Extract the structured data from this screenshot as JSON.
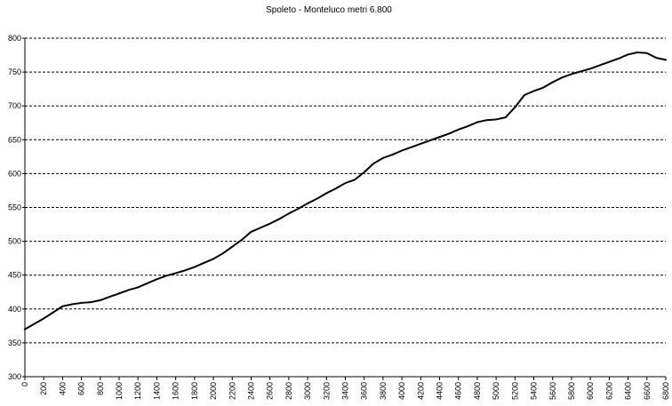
{
  "chart_data": {
    "type": "line",
    "title": "Spoleto - Monteluco metri 6.800",
    "xlabel": "",
    "ylabel": "",
    "ylim": [
      300,
      800
    ],
    "yticks": [
      300,
      350,
      400,
      450,
      500,
      550,
      600,
      650,
      700,
      750,
      800
    ],
    "xlim": [
      0,
      6800
    ],
    "xticks": [
      0,
      200,
      400,
      600,
      800,
      1000,
      1200,
      1400,
      1600,
      1800,
      2000,
      2200,
      2400,
      2600,
      2800,
      3000,
      3200,
      3400,
      3600,
      3800,
      4000,
      4200,
      4400,
      4600,
      4800,
      5000,
      5200,
      5400,
      5600,
      5800,
      6000,
      6200,
      6400,
      6600,
      6800
    ],
    "grid": true,
    "grid_axis": "y",
    "grid_style": "dashed",
    "colors": {
      "line": "#000000",
      "grid": "#000000",
      "axis": "#000000",
      "background": "#ffffff"
    },
    "series": [
      {
        "x": [
          0,
          100,
          200,
          300,
          400,
          500,
          600,
          700,
          800,
          900,
          1000,
          1100,
          1200,
          1300,
          1400,
          1500,
          1600,
          1700,
          1800,
          1900,
          2000,
          2100,
          2200,
          2300,
          2400,
          2500,
          2600,
          2700,
          2800,
          2900,
          3000,
          3100,
          3200,
          3300,
          3400,
          3500,
          3600,
          3700,
          3800,
          3900,
          4000,
          4100,
          4200,
          4300,
          4400,
          4500,
          4600,
          4700,
          4800,
          4900,
          5000,
          5100,
          5200,
          5300,
          5400,
          5500,
          5600,
          5700,
          5800,
          5900,
          6000,
          6100,
          6200,
          6300,
          6400,
          6500,
          6600,
          6700,
          6800
        ],
        "values": [
          370,
          378,
          386,
          395,
          404,
          407,
          409,
          410,
          413,
          418,
          423,
          428,
          432,
          438,
          444,
          449,
          453,
          457,
          462,
          468,
          474,
          482,
          492,
          502,
          514,
          520,
          526,
          533,
          541,
          548,
          556,
          563,
          571,
          578,
          586,
          591,
          602,
          615,
          623,
          628,
          634,
          639,
          644,
          649,
          654,
          659,
          665,
          670,
          676,
          679,
          680,
          683,
          698,
          716,
          722,
          727,
          735,
          742,
          747,
          751,
          755,
          760,
          765,
          770,
          776,
          779,
          778,
          771,
          768
        ]
      }
    ]
  }
}
